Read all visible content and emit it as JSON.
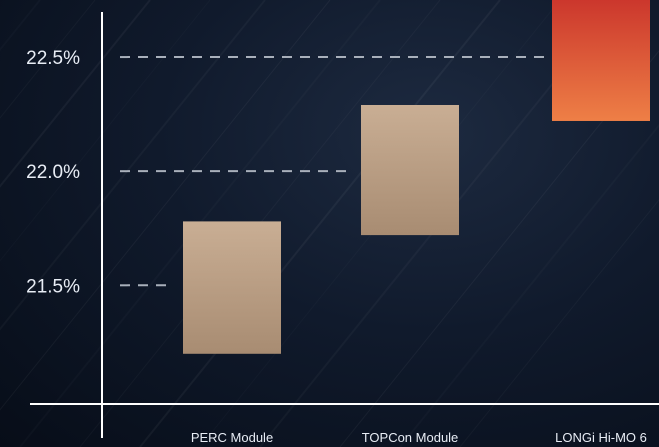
{
  "chart_data": {
    "type": "bar",
    "subtype": "floating-range",
    "categories": [
      "PERC Module",
      "TOPCon Module",
      "LONGi Hi-MO 6"
    ],
    "ranges": [
      {
        "low": 21.2,
        "high": 21.78
      },
      {
        "low": 21.72,
        "high": 22.29
      },
      {
        "low": 22.22,
        "high": 22.8
      }
    ],
    "yticks": [
      "21.5%",
      "22.0%",
      "22.5%"
    ],
    "ytick_values": [
      21.5,
      22.0,
      22.5
    ],
    "ylim": [
      20.98,
      22.75
    ],
    "grid": "dashed reference lines at tick values",
    "colors": {
      "bar_top": "#c9ae94",
      "bar_bottom": "#a88c72",
      "highlight_top": "#c8302a",
      "highlight_bottom": "#ee7f46",
      "axis": "#ffffff",
      "gridline": "#a9b0bb",
      "text": "#e8edf5"
    }
  }
}
